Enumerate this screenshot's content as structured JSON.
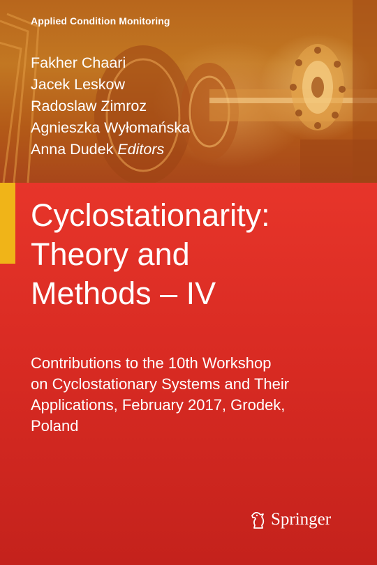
{
  "series": "Applied Condition Monitoring",
  "editors": {
    "names": [
      "Fakher Chaari",
      "Jacek Leskow",
      "Radoslaw Zimroz",
      "Agnieszka Wyłomańska",
      "Anna Dudek"
    ],
    "role": "Editors"
  },
  "title_lines": [
    "Cyclostationarity:",
    "Theory and",
    "Methods – IV"
  ],
  "subtitle_lines": [
    "Contributions to the 10th Workshop",
    "on Cyclostationary Systems and Their",
    "Applications, February 2017, Grodek,",
    "Poland"
  ],
  "publisher": {
    "name": "Springer",
    "logo_icon": "springer-knight-icon"
  },
  "colors": {
    "red": "#d92b23",
    "accent": "#f0b418",
    "photo": "#c27722"
  }
}
